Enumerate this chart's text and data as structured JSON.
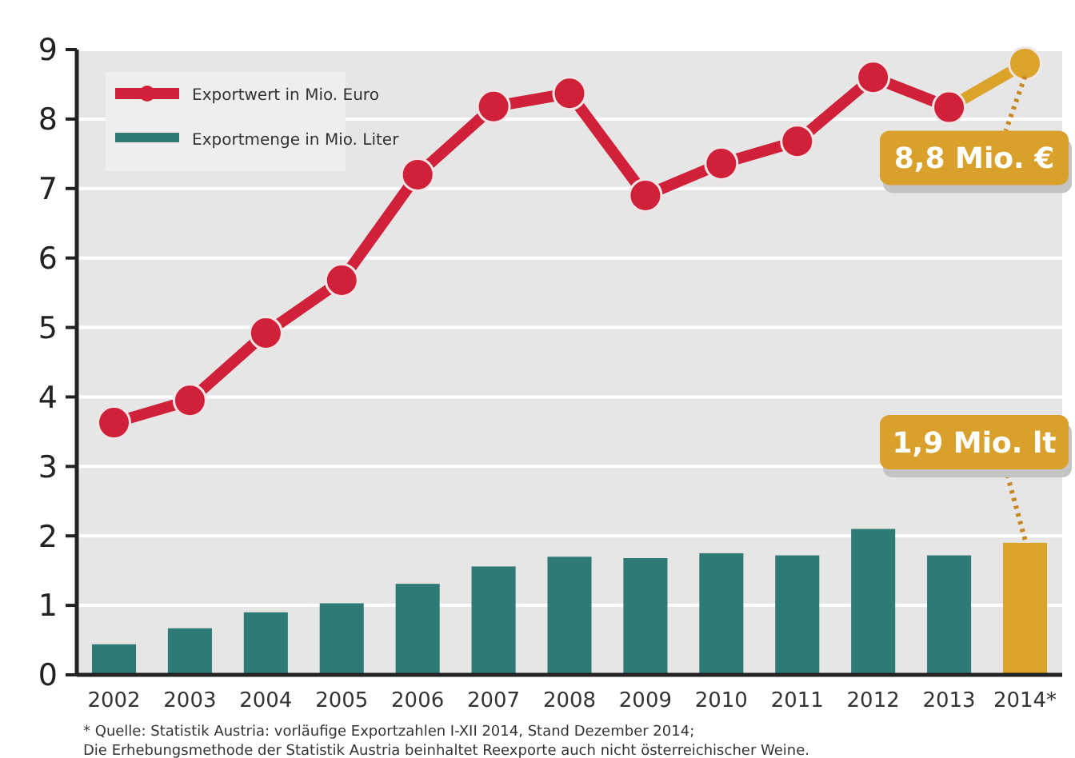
{
  "chart_data": {
    "type": "bar",
    "categories": [
      "2002",
      "2003",
      "2004",
      "2005",
      "2006",
      "2007",
      "2008",
      "2009",
      "2010",
      "2011",
      "2012",
      "2013",
      "2014*"
    ],
    "series": [
      {
        "type": "line",
        "name": "Exportwert in Mio. Euro",
        "color": "#d0203a",
        "colors": [
          "#d0203a",
          "#d0203a",
          "#d0203a",
          "#d0203a",
          "#d0203a",
          "#d0203a",
          "#d0203a",
          "#d0203a",
          "#d0203a",
          "#d0203a",
          "#d0203a",
          "#d0203a",
          "#dba32a"
        ],
        "values": [
          3.63,
          3.95,
          4.92,
          5.68,
          7.2,
          8.18,
          8.37,
          6.9,
          7.36,
          7.68,
          8.6,
          8.17,
          8.8
        ]
      },
      {
        "name": "Exportmenge in Mio. Liter",
        "color": "#2e7a74",
        "colors": [
          "#2e7a74",
          "#2e7a74",
          "#2e7a74",
          "#2e7a74",
          "#2e7a74",
          "#2e7a74",
          "#2e7a74",
          "#2e7a74",
          "#2e7a74",
          "#2e7a74",
          "#2e7a74",
          "#2e7a74",
          "#dba32a"
        ],
        "values": [
          0.44,
          0.67,
          0.9,
          1.03,
          1.31,
          1.56,
          1.7,
          1.68,
          1.75,
          1.72,
          2.1,
          1.72,
          1.9
        ]
      }
    ],
    "ylim": [
      0,
      9
    ],
    "yticks": [
      0,
      1,
      2,
      3,
      4,
      5,
      6,
      7,
      8,
      9
    ],
    "grid": "y",
    "legend": "top left",
    "marker": "circle",
    "annotations": [
      {
        "text": "8,8 Mio. €",
        "x": "2014*",
        "y": 8.8
      },
      {
        "text": "1,9 Mio. lt",
        "x": "2014*",
        "y": 1.9
      },
      "* Quelle: Statistik Austria: vorläufige Exportzahlen I-XII 2014, Stand Dezember 2014;",
      "Die Erhebungsmethode der Statistik Austria beinhaltet Reexporte auch nicht österreichischer Weine."
    ]
  }
}
